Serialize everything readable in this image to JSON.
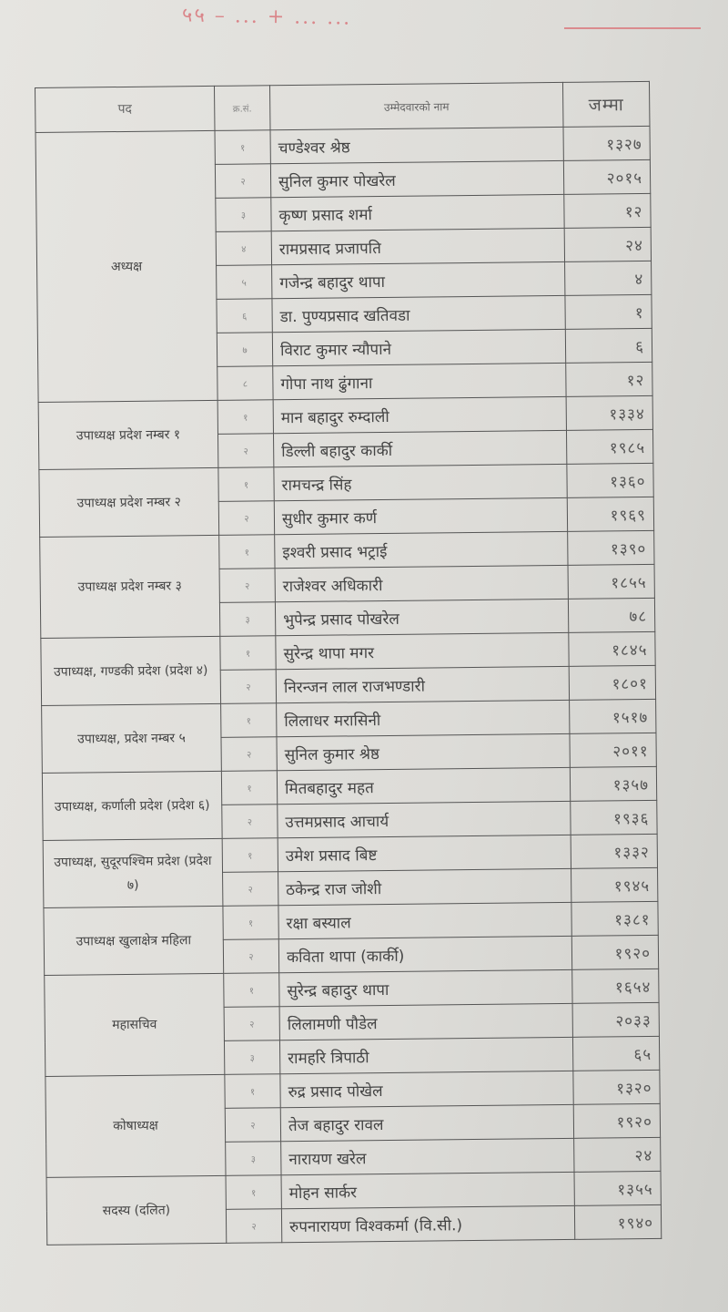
{
  "handwritten_note": "५५ – ... + ... ...",
  "table": {
    "headers": {
      "post": "पद",
      "serial": "क्र.सं.",
      "name": "उम्मेदवारको नाम",
      "total": "जम्मा"
    },
    "groups": [
      {
        "post": "अध्यक्ष",
        "rows": [
          {
            "sn": "१",
            "name": "चण्डेश्वर श्रेष्ठ",
            "total": "१३२७"
          },
          {
            "sn": "२",
            "name": "सुनिल कुमार पोखरेल",
            "total": "२०१५"
          },
          {
            "sn": "३",
            "name": "कृष्ण प्रसाद शर्मा",
            "total": "१२"
          },
          {
            "sn": "४",
            "name": "रामप्रसाद प्रजापति",
            "total": "२४"
          },
          {
            "sn": "५",
            "name": "गजेन्द्र बहादुर थापा",
            "total": "४"
          },
          {
            "sn": "६",
            "name": "डा. पुण्यप्रसाद खतिवडा",
            "total": "१"
          },
          {
            "sn": "७",
            "name": "विराट कुमार न्यौपाने",
            "total": "६"
          },
          {
            "sn": "८",
            "name": "गोपा नाथ ढुंगाना",
            "total": "१२"
          }
        ]
      },
      {
        "post": "उपाध्यक्ष प्रदेश नम्बर १",
        "rows": [
          {
            "sn": "१",
            "name": "मान बहादुर रुम्दाली",
            "total": "१३३४"
          },
          {
            "sn": "२",
            "name": "डिल्ली बहादुर कार्की",
            "total": "१९८५"
          }
        ]
      },
      {
        "post": "उपाध्यक्ष प्रदेश नम्बर २",
        "rows": [
          {
            "sn": "१",
            "name": "रामचन्द्र सिंह",
            "total": "१३६०"
          },
          {
            "sn": "२",
            "name": "सुधीर कुमार कर्ण",
            "total": "१९६९"
          }
        ]
      },
      {
        "post": "उपाध्यक्ष प्रदेश नम्बर ३",
        "rows": [
          {
            "sn": "१",
            "name": "इश्वरी प्रसाद भट्राई",
            "total": "१३९०"
          },
          {
            "sn": "२",
            "name": "राजेश्वर अधिकारी",
            "total": "१८५५"
          },
          {
            "sn": "३",
            "name": "भुपेन्द्र प्रसाद पोखरेल",
            "total": "७८"
          }
        ]
      },
      {
        "post": "उपाध्यक्ष, गण्डकी प्रदेश (प्रदेश ४)",
        "rows": [
          {
            "sn": "१",
            "name": "सुरेन्द्र थापा मगर",
            "total": "१८४५"
          },
          {
            "sn": "२",
            "name": "निरन्जन लाल राजभण्डारी",
            "total": "१८०१"
          }
        ]
      },
      {
        "post": "उपाध्यक्ष, प्रदेश नम्बर ५",
        "rows": [
          {
            "sn": "१",
            "name": "लिलाधर मरासिनी",
            "total": "१५१७"
          },
          {
            "sn": "२",
            "name": "सुनिल कुमार श्रेष्ठ",
            "total": "२०११"
          }
        ]
      },
      {
        "post": "उपाध्यक्ष, कर्णाली प्रदेश (प्रदेश ६)",
        "rows": [
          {
            "sn": "१",
            "name": "मितबहादुर महत",
            "total": "१३५७"
          },
          {
            "sn": "२",
            "name": "उत्तमप्रसाद आचार्य",
            "total": "१९३६"
          }
        ]
      },
      {
        "post": "उपाध्यक्ष, सुदूरपश्चिम प्रदेश (प्रदेश ७)",
        "rows": [
          {
            "sn": "१",
            "name": "उमेश प्रसाद बिष्ट",
            "total": "१३३२"
          },
          {
            "sn": "२",
            "name": "ठकेन्द्र राज जोशी",
            "total": "१९४५"
          }
        ]
      },
      {
        "post": "उपाध्यक्ष खुलाक्षेत्र महिला",
        "rows": [
          {
            "sn": "१",
            "name": "रक्षा बस्याल",
            "total": "१३८१"
          },
          {
            "sn": "२",
            "name": "कविता थापा (कार्की)",
            "total": "१९२०"
          }
        ]
      },
      {
        "post": "महासचिव",
        "rows": [
          {
            "sn": "१",
            "name": "सुरेन्द्र बहादुर थापा",
            "total": "१६५४"
          },
          {
            "sn": "२",
            "name": "लिलामणी पौडेल",
            "total": "२०३३"
          },
          {
            "sn": "३",
            "name": "रामहरि त्रिपाठी",
            "total": "६५"
          }
        ]
      },
      {
        "post": "कोषाध्यक्ष",
        "rows": [
          {
            "sn": "१",
            "name": "रुद्र प्रसाद पोखेल",
            "total": "१३२०"
          },
          {
            "sn": "२",
            "name": "तेज बहादुर रावल",
            "total": "१९२०"
          },
          {
            "sn": "३",
            "name": "नारायण खरेल",
            "total": "२४"
          }
        ]
      },
      {
        "post": "सदस्य (दलित)",
        "rows": [
          {
            "sn": "१",
            "name": "मोहन सार्कर",
            "total": "१३५५"
          },
          {
            "sn": "२",
            "name": "रुपनारायण विश्वकर्मा (वि.सी.)",
            "total": "१९४०"
          }
        ]
      }
    ]
  }
}
